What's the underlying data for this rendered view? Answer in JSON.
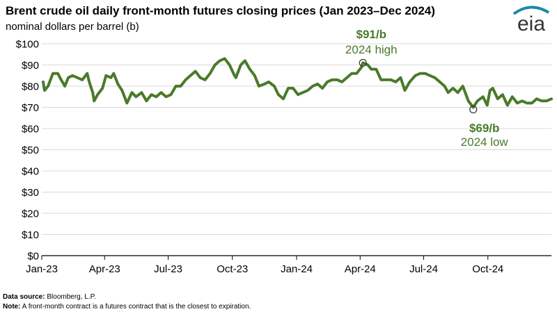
{
  "header": {
    "title": "Brent crude oil daily front-month futures closing prices (Jan 2023–Dec 2024)",
    "subtitle": "nominal dollars per barrel (b)",
    "logo_text": "eia"
  },
  "footer": {
    "source_label": "Data source:",
    "source_text": "Bloomberg, L.P.",
    "note_label": "Note:",
    "note_text": "A front-month contract is a futures contract that is the closest to expiration."
  },
  "colors": {
    "line": "#4a7a2a",
    "annotation": "#4a7a2a",
    "grid": "#d9d9d9",
    "axis": "#000000",
    "logo": "#333333",
    "logo_accent": "#1e88a8"
  },
  "chart_data": {
    "type": "line",
    "title": "Brent crude oil daily front-month futures closing prices (Jan 2023–Dec 2024)",
    "ylabel": "nominal dollars per barrel (b)",
    "ylim": [
      0,
      100
    ],
    "y_ticks": [
      "$0",
      "$10",
      "$20",
      "$30",
      "$40",
      "$50",
      "$60",
      "$70",
      "$80",
      "$90",
      "$100"
    ],
    "x_range": [
      "2023-01-01",
      "2024-12-31"
    ],
    "x_ticks": [
      {
        "date": "2023-01-01",
        "label": "Jan-23"
      },
      {
        "date": "2023-04-01",
        "label": "Apr-23"
      },
      {
        "date": "2023-07-01",
        "label": "Jul-23"
      },
      {
        "date": "2023-10-01",
        "label": "Oct-23"
      },
      {
        "date": "2024-01-01",
        "label": "Jan-24"
      },
      {
        "date": "2024-04-01",
        "label": "Apr-24"
      },
      {
        "date": "2024-07-01",
        "label": "Jul-24"
      },
      {
        "date": "2024-10-01",
        "label": "Oct-24"
      }
    ],
    "grid": "horizontal",
    "series": [
      {
        "x": [
          "2023-01-03",
          "2023-01-05",
          "2023-01-10",
          "2023-01-17",
          "2023-01-24",
          "2023-01-27",
          "2023-02-03",
          "2023-02-08",
          "2023-02-14",
          "2023-02-21",
          "2023-02-28",
          "2023-03-07",
          "2023-03-10",
          "2023-03-15",
          "2023-03-17",
          "2023-03-22",
          "2023-03-29",
          "2023-04-03",
          "2023-04-10",
          "2023-04-14",
          "2023-04-20",
          "2023-04-26",
          "2023-05-03",
          "2023-05-10",
          "2023-05-16",
          "2023-05-24",
          "2023-05-31",
          "2023-06-07",
          "2023-06-14",
          "2023-06-21",
          "2023-06-28",
          "2023-07-05",
          "2023-07-12",
          "2023-07-19",
          "2023-07-26",
          "2023-08-02",
          "2023-08-09",
          "2023-08-16",
          "2023-08-23",
          "2023-08-30",
          "2023-09-06",
          "2023-09-13",
          "2023-09-20",
          "2023-09-27",
          "2023-10-04",
          "2023-10-06",
          "2023-10-13",
          "2023-10-19",
          "2023-10-26",
          "2023-11-02",
          "2023-11-08",
          "2023-11-16",
          "2023-11-22",
          "2023-11-30",
          "2023-12-06",
          "2023-12-13",
          "2023-12-20",
          "2023-12-27",
          "2024-01-03",
          "2024-01-10",
          "2024-01-17",
          "2024-01-24",
          "2024-01-31",
          "2024-02-07",
          "2024-02-14",
          "2024-02-21",
          "2024-02-28",
          "2024-03-06",
          "2024-03-13",
          "2024-03-20",
          "2024-03-27",
          "2024-04-03",
          "2024-04-05",
          "2024-04-12",
          "2024-04-17",
          "2024-04-24",
          "2024-05-01",
          "2024-05-08",
          "2024-05-15",
          "2024-05-22",
          "2024-05-29",
          "2024-06-04",
          "2024-06-11",
          "2024-06-19",
          "2024-06-26",
          "2024-07-03",
          "2024-07-10",
          "2024-07-17",
          "2024-07-24",
          "2024-07-31",
          "2024-08-05",
          "2024-08-12",
          "2024-08-19",
          "2024-08-26",
          "2024-09-03",
          "2024-09-10",
          "2024-09-16",
          "2024-09-24",
          "2024-09-30",
          "2024-10-04",
          "2024-10-08",
          "2024-10-15",
          "2024-10-22",
          "2024-10-29",
          "2024-11-05",
          "2024-11-12",
          "2024-11-19",
          "2024-11-26",
          "2024-12-03",
          "2024-12-10",
          "2024-12-17",
          "2024-12-24",
          "2024-12-31"
        ],
        "values": [
          82,
          78,
          80,
          86,
          86,
          84,
          80,
          84,
          85,
          84,
          83,
          86,
          82,
          77,
          73,
          76,
          79,
          85,
          84,
          86,
          81,
          78,
          72,
          77,
          75,
          77,
          73,
          76,
          75,
          77,
          75,
          76,
          80,
          80,
          83,
          85,
          87,
          84,
          83,
          86,
          90,
          92,
          93,
          90,
          85,
          84,
          90,
          92,
          88,
          85,
          80,
          81,
          82,
          80,
          76,
          74,
          79,
          79,
          76,
          77,
          78,
          80,
          81,
          79,
          82,
          83,
          83,
          82,
          84,
          86,
          86,
          89,
          91,
          90,
          88,
          88,
          83,
          83,
          83,
          82,
          84,
          78,
          82,
          85,
          86,
          86,
          85,
          84,
          82,
          80,
          77,
          79,
          77,
          80,
          73,
          70,
          73,
          75,
          71,
          78,
          79,
          74,
          76,
          71,
          75,
          72,
          73,
          72,
          72,
          74,
          73,
          73,
          74
        ]
      }
    ],
    "annotations": [
      {
        "date": "2024-04-05",
        "value": 91,
        "label": "$91/b",
        "sublabel": "2024 high"
      },
      {
        "date": "2024-09-10",
        "value": 69,
        "label": "$69/b",
        "sublabel": "2024 low"
      }
    ]
  }
}
